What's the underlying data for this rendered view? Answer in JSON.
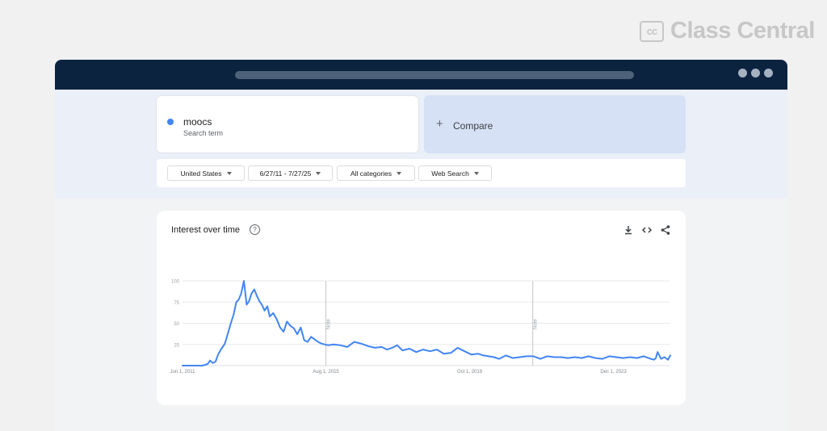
{
  "brand": {
    "mark": "cc",
    "name": "Class Central"
  },
  "search": {
    "term": "moocs",
    "term_type": "Search term",
    "term_color": "#4285f4"
  },
  "compare": {
    "plus": "+",
    "label": "Compare"
  },
  "filters": [
    {
      "label": "United States"
    },
    {
      "label": "6/27/11 - 7/27/25"
    },
    {
      "label": "All categories"
    },
    {
      "label": "Web Search"
    }
  ],
  "chart_card": {
    "title": "Interest over time",
    "help": "?",
    "icons": [
      "download-icon",
      "embed-icon",
      "share-icon"
    ]
  },
  "chart_data": {
    "type": "line",
    "title": "Interest over time",
    "xlabel": "",
    "ylabel": "",
    "ylim": [
      0,
      100
    ],
    "yticks": [
      100,
      75,
      50,
      25
    ],
    "xticks": [
      {
        "label": "Jun 1, 2011",
        "t": 2011.42
      },
      {
        "label": "Aug 1, 2015",
        "t": 2015.58
      },
      {
        "label": "Oct 1, 2019",
        "t": 2019.75
      },
      {
        "label": "Dec 1, 2023",
        "t": 2023.92
      }
    ],
    "xrange": [
      2011.42,
      2025.57
    ],
    "notes": [
      {
        "label": "Note",
        "t": 2015.58
      },
      {
        "label": "Note",
        "t": 2021.58
      }
    ],
    "grid": true,
    "line_color": "#4285f4",
    "series": [
      {
        "x": [
          2011.42,
          2011.6,
          2011.8,
          2012.0,
          2012.15,
          2012.22,
          2012.3,
          2012.38,
          2012.45,
          2012.55,
          2012.65,
          2012.75,
          2012.82,
          2012.9,
          2012.98,
          2013.05,
          2013.12,
          2013.2,
          2013.28,
          2013.35,
          2013.42,
          2013.5,
          2013.57,
          2013.65,
          2013.72,
          2013.8,
          2013.88,
          2013.95,
          2014.05,
          2014.15,
          2014.25,
          2014.35,
          2014.45,
          2014.55,
          2014.65,
          2014.75,
          2014.85,
          2014.95,
          2015.05,
          2015.15,
          2015.25,
          2015.35,
          2015.45,
          2015.55,
          2015.65,
          2015.8,
          2016.0,
          2016.2,
          2016.4,
          2016.6,
          2016.8,
          2017.0,
          2017.2,
          2017.35,
          2017.5,
          2017.65,
          2017.8,
          2018.0,
          2018.2,
          2018.4,
          2018.6,
          2018.8,
          2019.0,
          2019.2,
          2019.4,
          2019.6,
          2019.8,
          2020.0,
          2020.15,
          2020.3,
          2020.45,
          2020.6,
          2020.8,
          2021.0,
          2021.2,
          2021.4,
          2021.6,
          2021.8,
          2022.0,
          2022.2,
          2022.4,
          2022.6,
          2022.8,
          2023.0,
          2023.2,
          2023.4,
          2023.6,
          2023.8,
          2024.0,
          2024.2,
          2024.4,
          2024.6,
          2024.8,
          2025.0,
          2025.1,
          2025.15,
          2025.2,
          2025.3,
          2025.4,
          2025.5,
          2025.57
        ],
        "values": [
          0,
          0,
          0,
          0,
          2,
          6,
          3,
          5,
          13,
          20,
          26,
          40,
          50,
          60,
          75,
          78,
          85,
          100,
          72,
          76,
          85,
          90,
          83,
          76,
          72,
          65,
          70,
          58,
          62,
          55,
          45,
          40,
          52,
          47,
          44,
          37,
          45,
          30,
          28,
          34,
          31,
          28,
          26,
          25,
          24,
          25,
          24,
          22,
          28,
          26,
          23,
          21,
          22,
          19,
          21,
          24,
          18,
          20,
          16,
          19,
          17,
          19,
          14,
          15,
          21,
          17,
          13,
          14,
          12,
          11,
          10,
          8,
          12,
          9,
          10,
          11,
          11,
          8,
          11,
          10,
          10,
          9,
          10,
          9,
          11,
          9,
          8,
          11,
          10,
          9,
          10,
          9,
          11,
          8,
          7,
          9,
          16,
          8,
          10,
          7,
          12
        ]
      }
    ]
  }
}
